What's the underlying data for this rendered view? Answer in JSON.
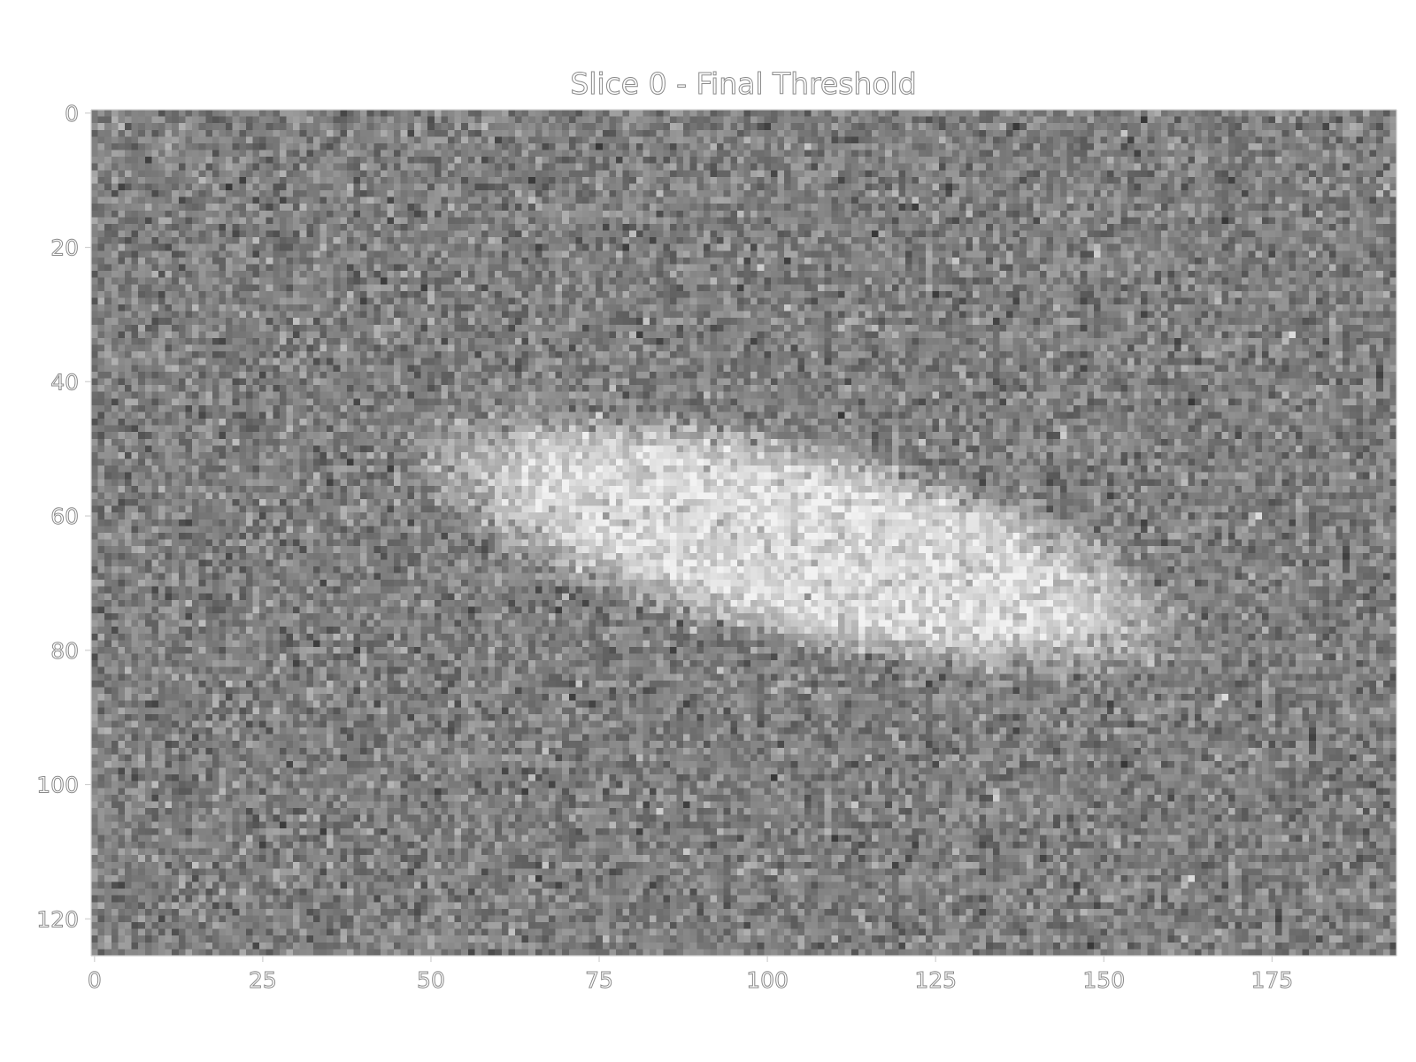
{
  "chart_data": {
    "type": "heatmap",
    "title": "Slice 0 - Final Threshold",
    "colormap": "gray",
    "image_shape": [
      126,
      194
    ],
    "x_range": [
      -0.5,
      193.5
    ],
    "y_range": [
      125.5,
      -0.5
    ],
    "x_ticks": [
      0,
      25,
      50,
      75,
      100,
      125,
      150,
      175
    ],
    "x_tick_labels": [
      "0",
      "25",
      "50",
      "75",
      "100",
      "125",
      "150",
      "175"
    ],
    "y_ticks": [
      0,
      20,
      40,
      60,
      80,
      100,
      120
    ],
    "y_tick_labels": [
      "0",
      "20",
      "40",
      "60",
      "80",
      "100",
      "120"
    ],
    "background_intensity": 0.5,
    "noise_level": "high",
    "bright_region": {
      "description": "elongated bright blob",
      "center": [
        105,
        64
      ],
      "extent_x": [
        52,
        160
      ],
      "extent_y": [
        40,
        88
      ],
      "peak_intensity": 0.85,
      "orientation": "descending left-to-right"
    },
    "xlabel": "",
    "ylabel": "",
    "grid": false,
    "colors": {
      "axis_line": "#d0d0d0",
      "tick_label_stroke": "#8a8a8a"
    }
  }
}
